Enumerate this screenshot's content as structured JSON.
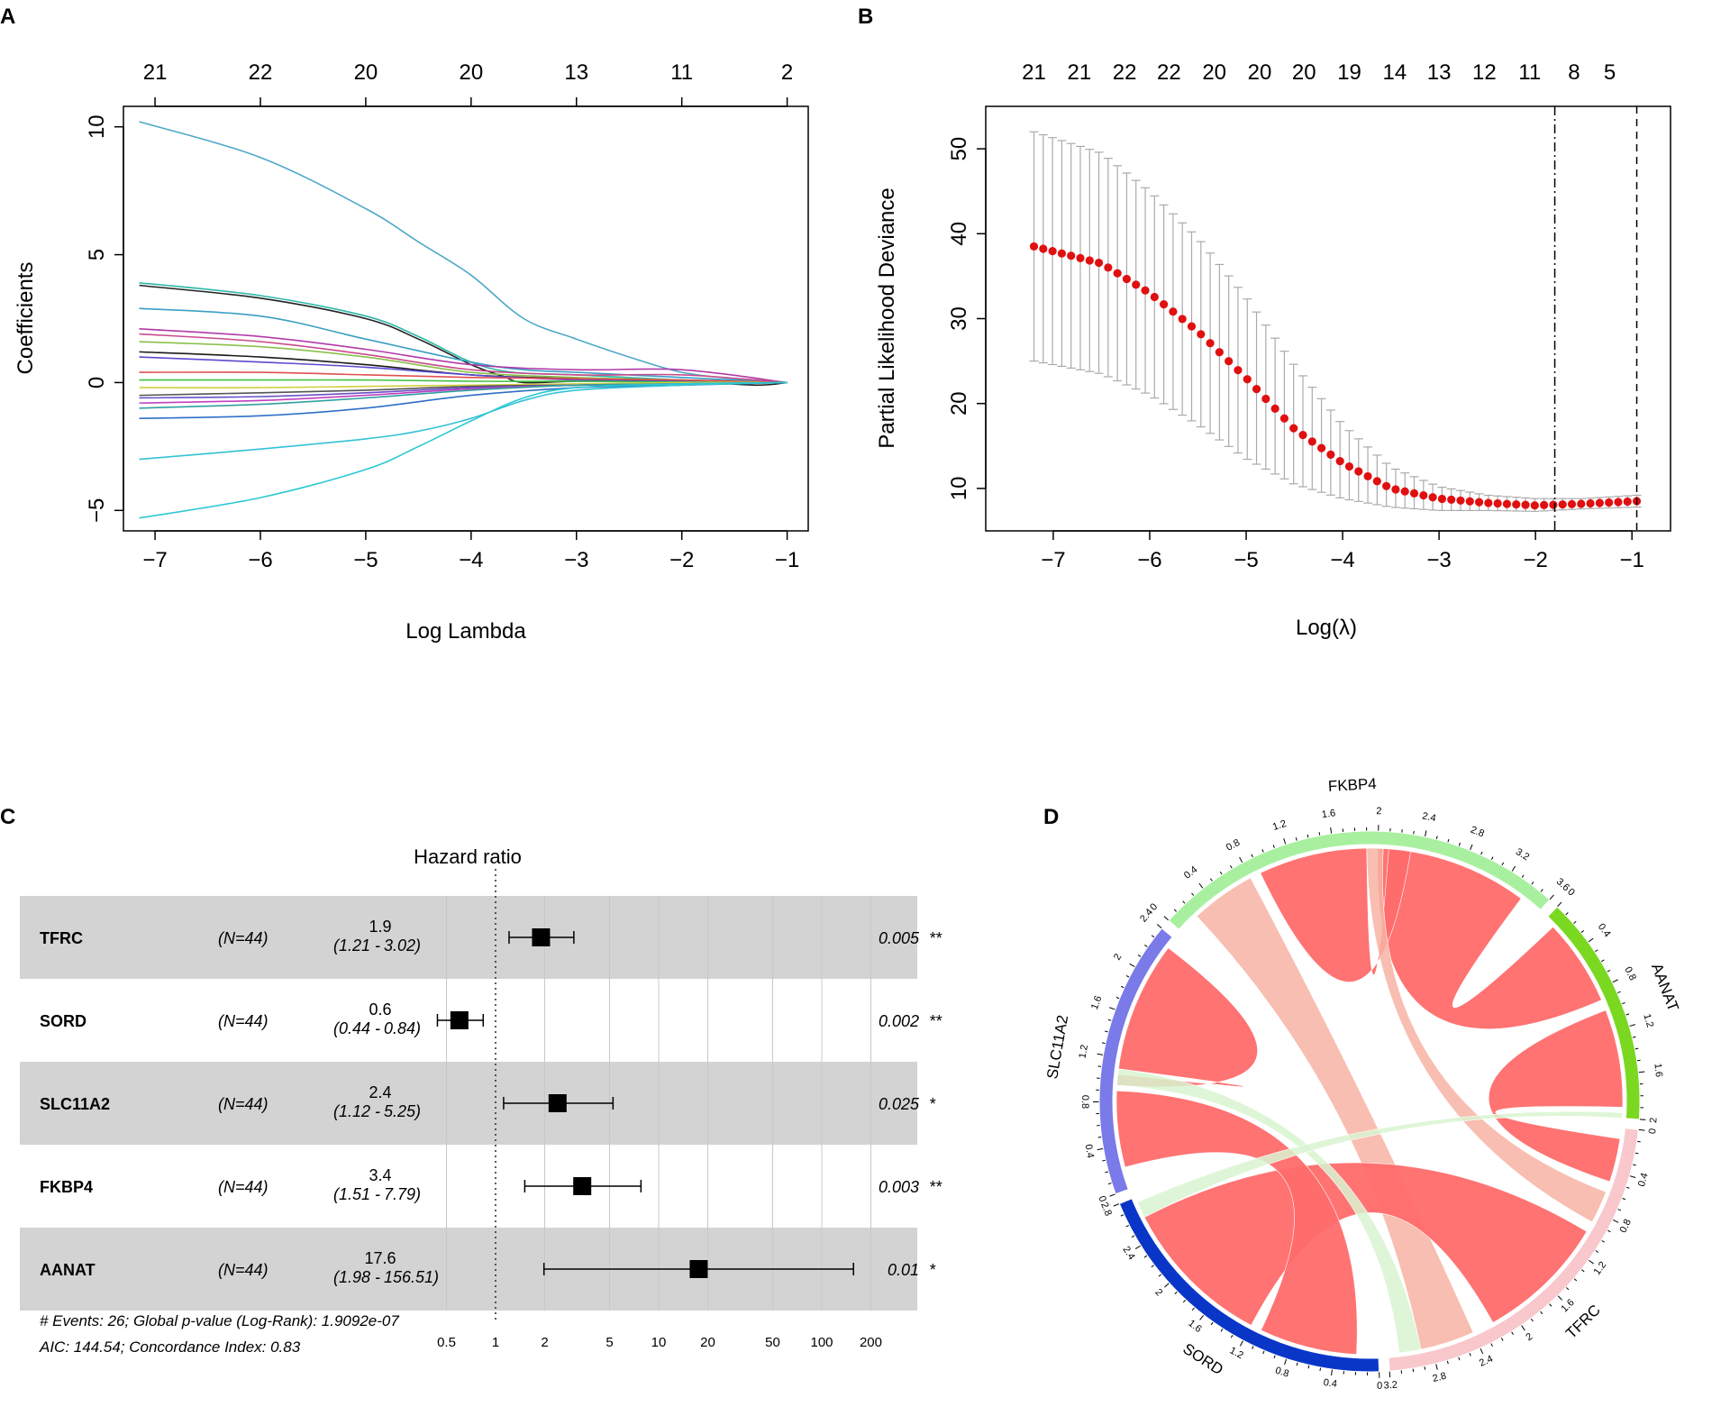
{
  "panels": {
    "a": "A",
    "b": "B",
    "c": "C",
    "d": "D"
  },
  "chart_data": [
    {
      "id": "A",
      "type": "line",
      "xlabel": "Log Lambda",
      "ylabel": "Coefficients",
      "xlim": [
        -7.3,
        -0.8
      ],
      "ylim": [
        -5.8,
        10.8
      ],
      "xticks": [
        -7,
        -6,
        -5,
        -4,
        -3,
        -2,
        -1
      ],
      "xtick_labels": [
        "−7",
        "−6",
        "−5",
        "−4",
        "−3",
        "−2",
        "−1"
      ],
      "yticks": [
        -5,
        0,
        5,
        10
      ],
      "ytick_labels": [
        "−5",
        "0",
        "5",
        "10"
      ],
      "top_ticks": [
        -7,
        -6,
        -5,
        -4,
        -3,
        -2,
        -1
      ],
      "top_labels": [
        "21",
        "22",
        "20",
        "20",
        "13",
        "11",
        "2"
      ],
      "series": [
        {
          "name": "path1",
          "color": "#4ea8c7",
          "x": [
            -7.15,
            -6,
            -5,
            -4.5,
            -4,
            -3.5,
            -3,
            -2.5,
            -2,
            -1.5,
            -1
          ],
          "values": [
            10.2,
            8.8,
            6.8,
            5.5,
            4.2,
            2.5,
            1.7,
            1.0,
            0.4,
            0.15,
            0
          ]
        },
        {
          "name": "path2",
          "color": "#222222",
          "x": [
            -7.15,
            -6,
            -5,
            -4.5,
            -4,
            -3.7,
            -3.5,
            -3,
            -2,
            -1.3,
            -1
          ],
          "values": [
            3.8,
            3.3,
            2.5,
            1.7,
            0.7,
            0.25,
            0.0,
            0.05,
            0.05,
            -0.1,
            0
          ]
        },
        {
          "name": "path3",
          "color": "#2eb8a8",
          "x": [
            -7.15,
            -6,
            -5,
            -4.5,
            -4,
            -3.6,
            -3,
            -2,
            -1
          ],
          "values": [
            3.9,
            3.4,
            2.6,
            1.8,
            0.8,
            0.4,
            0.3,
            0.1,
            0
          ]
        },
        {
          "name": "path4",
          "color": "#3a9fc4",
          "x": [
            -7.15,
            -6,
            -5,
            -4,
            -3.5,
            -3,
            -2,
            -1
          ],
          "values": [
            2.9,
            2.6,
            1.7,
            0.8,
            0.5,
            0.4,
            0.2,
            0
          ]
        },
        {
          "name": "path5",
          "color": "#b03aa8",
          "x": [
            -7.15,
            -6,
            -5,
            -4,
            -3,
            -2,
            -1
          ],
          "values": [
            2.1,
            1.8,
            1.3,
            0.7,
            0.5,
            0.5,
            0
          ]
        },
        {
          "name": "path6",
          "color": "#c94a8c",
          "x": [
            -7.15,
            -6,
            -5,
            -4,
            -3,
            -2,
            -1
          ],
          "values": [
            1.9,
            1.6,
            1.1,
            0.5,
            0.3,
            0.3,
            0
          ]
        },
        {
          "name": "path7",
          "color": "#8ac04a",
          "x": [
            -7.15,
            -6,
            -5,
            -4,
            -3,
            -2,
            -1
          ],
          "values": [
            1.6,
            1.4,
            1.0,
            0.4,
            0.2,
            0.1,
            0
          ]
        },
        {
          "name": "path8",
          "color": "#1a1a1a",
          "x": [
            -7.15,
            -6,
            -5,
            -4,
            -3,
            -2,
            -1
          ],
          "values": [
            1.2,
            1.0,
            0.7,
            0.3,
            0.15,
            0.05,
            0
          ]
        },
        {
          "name": "path9",
          "color": "#5a4ad0",
          "x": [
            -7.15,
            -6,
            -5,
            -4,
            -3,
            -2,
            -1
          ],
          "values": [
            1.0,
            0.8,
            0.6,
            0.3,
            0.1,
            0.05,
            0
          ]
        },
        {
          "name": "path10",
          "color": "#e05050",
          "x": [
            -7.15,
            -6,
            -5,
            -4,
            -3,
            -2,
            -1
          ],
          "values": [
            0.4,
            0.4,
            0.3,
            0.2,
            0.15,
            0.1,
            0
          ]
        },
        {
          "name": "path11",
          "color": "#40c040",
          "x": [
            -7.15,
            -6,
            -5,
            -4,
            -3,
            -2,
            -1
          ],
          "values": [
            0.1,
            0.1,
            0.1,
            0.05,
            0.05,
            0.02,
            0
          ]
        },
        {
          "name": "path12",
          "color": "#d0d040",
          "x": [
            -7.15,
            -6,
            -5,
            -4,
            -3,
            -2,
            -1
          ],
          "values": [
            -0.2,
            -0.2,
            -0.15,
            -0.1,
            -0.05,
            0,
            0
          ]
        },
        {
          "name": "path13",
          "color": "#555555",
          "x": [
            -7.15,
            -6,
            -5,
            -4,
            -3,
            -2,
            -1
          ],
          "values": [
            -0.5,
            -0.4,
            -0.3,
            -0.15,
            -0.1,
            -0.05,
            0
          ]
        },
        {
          "name": "path14",
          "color": "#6a50c8",
          "x": [
            -7.15,
            -6,
            -5,
            -4,
            -3,
            -2,
            -1
          ],
          "values": [
            -0.6,
            -0.55,
            -0.4,
            -0.2,
            -0.1,
            -0.05,
            0
          ]
        },
        {
          "name": "path15",
          "color": "#c040c0",
          "x": [
            -7.15,
            -6,
            -5,
            -4,
            -3,
            -2,
            -1
          ],
          "values": [
            -0.8,
            -0.7,
            -0.5,
            -0.25,
            -0.1,
            -0.05,
            0
          ]
        },
        {
          "name": "path16",
          "color": "#30a0a0",
          "x": [
            -7.15,
            -6,
            -5,
            -4,
            -3,
            -2,
            -1
          ],
          "values": [
            -1.0,
            -0.85,
            -0.6,
            -0.3,
            -0.1,
            -0.05,
            0
          ]
        },
        {
          "name": "path17",
          "color": "#2f6fc8",
          "x": [
            -7.15,
            -6,
            -5,
            -4,
            -3,
            -2,
            -1
          ],
          "values": [
            -1.4,
            -1.3,
            -1.0,
            -0.5,
            -0.2,
            -0.1,
            0
          ]
        },
        {
          "name": "path18",
          "color": "#33c2d6",
          "x": [
            -7.15,
            -6,
            -5,
            -4.5,
            -4,
            -3.5,
            -3,
            -2,
            -1
          ],
          "values": [
            -3.0,
            -2.6,
            -2.2,
            -1.9,
            -1.4,
            -0.7,
            -0.3,
            -0.1,
            0
          ]
        },
        {
          "name": "path19",
          "color": "#2dc8d2",
          "x": [
            -7.15,
            -6,
            -5,
            -4.5,
            -4,
            -3.5,
            -3,
            -2,
            -1
          ],
          "values": [
            -5.3,
            -4.5,
            -3.4,
            -2.5,
            -1.5,
            -0.6,
            -0.2,
            -0.05,
            0
          ]
        }
      ]
    },
    {
      "id": "B",
      "type": "scatter",
      "xlabel": "Log(λ)",
      "ylabel": "Partial Likelihood Deviance",
      "xlim": [
        -7.7,
        -0.6
      ],
      "ylim": [
        5,
        55
      ],
      "xticks": [
        -7,
        -6,
        -5,
        -4,
        -3,
        -2,
        -1
      ],
      "xtick_labels": [
        "−7",
        "−6",
        "−5",
        "−4",
        "−3",
        "−2",
        "−1"
      ],
      "yticks": [
        10,
        20,
        30,
        40,
        50
      ],
      "ytick_labels": [
        "10",
        "20",
        "30",
        "40",
        "50"
      ],
      "top_ticks": [
        -7.2,
        -6.73,
        -6.26,
        -5.8,
        -5.33,
        -4.86,
        -4.4,
        -3.93,
        -3.46,
        -3.0,
        -2.53,
        -2.06,
        -1.6,
        -1.23
      ],
      "top_labels": [
        "21",
        "21",
        "22",
        "22",
        "20",
        "20",
        "20",
        "19",
        "14",
        "13",
        "12",
        "11",
        "8",
        "5"
      ],
      "vlines": [
        -1.8,
        -0.95
      ],
      "point_color": "#e01010",
      "err_color": "#aaaaaa",
      "n_points": 66,
      "x_start": -7.2,
      "x_end": -0.95,
      "mean_knots_x": [
        -7.2,
        -6.5,
        -6.0,
        -5.5,
        -5.0,
        -4.5,
        -4.0,
        -3.5,
        -3.0,
        -2.5,
        -2.0,
        -1.5,
        -0.95
      ],
      "mean_knots_y": [
        38.5,
        36.5,
        33.0,
        28.5,
        23.0,
        17.0,
        13.0,
        10.0,
        8.8,
        8.3,
        8.0,
        8.2,
        8.5
      ],
      "upper_knots_y": [
        52.0,
        49.5,
        45.0,
        39.5,
        32.5,
        24.5,
        17.5,
        12.5,
        10.2,
        9.2,
        8.8,
        8.8,
        9.2
      ],
      "lower_knots_y": [
        25.0,
        23.5,
        21.0,
        17.5,
        13.5,
        10.5,
        8.8,
        7.8,
        7.4,
        7.4,
        7.3,
        7.6,
        7.8
      ]
    },
    {
      "id": "C",
      "type": "forest",
      "title": "Hazard ratio",
      "x_scale": "log",
      "xticks": [
        0.5,
        1,
        2,
        5,
        10,
        20,
        50,
        100,
        200
      ],
      "xtick_labels": [
        "0.5",
        "1",
        "2",
        "5",
        "10",
        "20",
        "50",
        "100",
        "200"
      ],
      "reference_line": 1,
      "rows": [
        {
          "gene": "TFRC",
          "n": "(N=44)",
          "hr": 1.9,
          "hr_label": "1.9",
          "lo": 1.21,
          "hi": 3.02,
          "ci_lo": "(1.21 -",
          "ci_hi": "3.02)",
          "p": "0.005",
          "sig": "**",
          "shaded": true
        },
        {
          "gene": "SORD",
          "n": "(N=44)",
          "hr": 0.6,
          "hr_label": "0.6",
          "lo": 0.44,
          "hi": 0.84,
          "ci_lo": "(0.44 -",
          "ci_hi": "0.84)",
          "p": "0.002",
          "sig": "**",
          "shaded": false
        },
        {
          "gene": "SLC11A2",
          "n": "(N=44)",
          "hr": 2.4,
          "hr_label": "2.4",
          "lo": 1.12,
          "hi": 5.25,
          "ci_lo": "(1.12 -",
          "ci_hi": "5.25)",
          "p": "0.025",
          "sig": "*",
          "shaded": true
        },
        {
          "gene": "FKBP4",
          "n": "(N=44)",
          "hr": 3.4,
          "hr_label": "3.4",
          "lo": 1.51,
          "hi": 7.79,
          "ci_lo": "(1.51 -",
          "ci_hi": "7.79)",
          "p": "0.003",
          "sig": "**",
          "shaded": false
        },
        {
          "gene": "AANAT",
          "n": "(N=44)",
          "hr": 17.6,
          "hr_label": "17.6",
          "lo": 1.98,
          "hi": 156.51,
          "ci_lo": "(1.98 -",
          "ci_hi": "156.51)",
          "p": "0.01",
          "sig": "*",
          "shaded": true
        }
      ],
      "footer": [
        "# Events: 26; Global p-value (Log-Rank): 1.9092e-07",
        "AIC: 144.54; Concordance Index: 0.83"
      ]
    },
    {
      "id": "D",
      "type": "chord",
      "sectors": [
        {
          "name": "FKBP4",
          "color": "#a8f0a0",
          "max": 3.6,
          "ticks": [
            "0",
            "0.4",
            "0.8",
            "1.2",
            "1.6",
            "2",
            "2.4",
            "2.8",
            "3.2",
            "3.6"
          ]
        },
        {
          "name": "AANAT",
          "color": "#7ad820",
          "max": 2.0,
          "ticks": [
            "0",
            "0.4",
            "0.8",
            "1.2",
            "1.6",
            "2"
          ]
        },
        {
          "name": "TFRC",
          "color": "#f8c8cc",
          "max": 3.2,
          "ticks": [
            "0",
            "0.4",
            "0.8",
            "1.2",
            "1.6",
            "2",
            "2.4",
            "2.8",
            "3.2"
          ]
        },
        {
          "name": "SORD",
          "color": "#0a36c8",
          "max": 2.8,
          "ticks": [
            "0",
            "0.4",
            "0.8",
            "1.2",
            "1.6",
            "2",
            "2.4",
            "2.8"
          ]
        },
        {
          "name": "SLC11A2",
          "color": "#7a7ae8",
          "max": 2.4,
          "ticks": [
            "0",
            "0.4",
            "0.8",
            "1.2",
            "1.6",
            "2",
            "2.4"
          ]
        }
      ],
      "link_colors": {
        "strong": "#ff6b6b",
        "medium": "#f7b3a3",
        "weak": "#d8f5d0"
      }
    }
  ]
}
